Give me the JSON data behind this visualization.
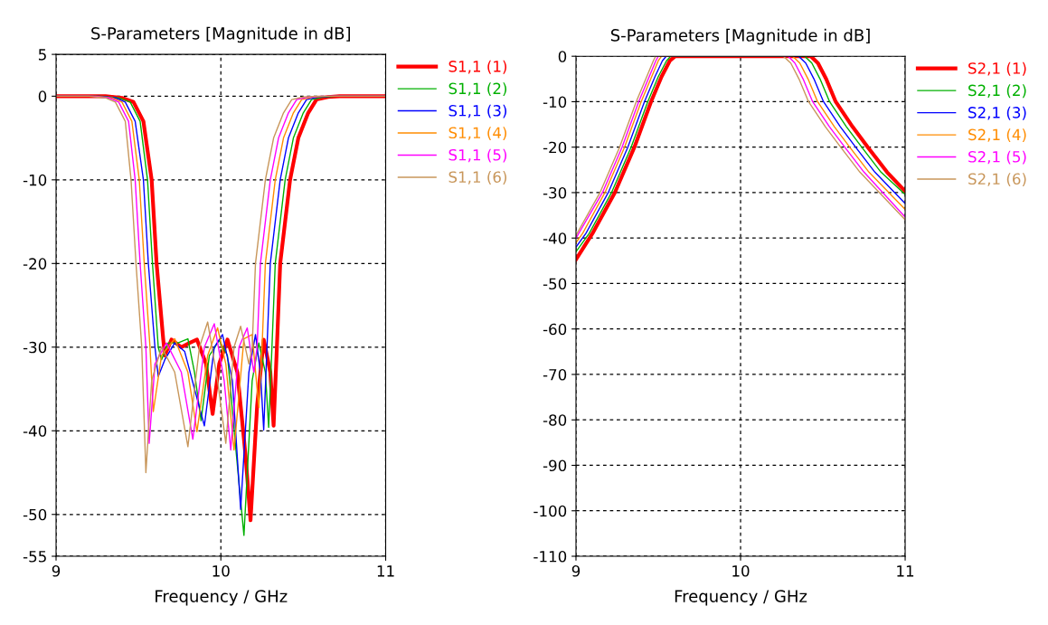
{
  "chart_data": [
    {
      "type": "line",
      "title": "S-Parameters [Magnitude in dB]",
      "xlabel": "Frequency / GHz",
      "xlim": [
        9,
        11
      ],
      "xticks": [
        9,
        10,
        11
      ],
      "ylim": [
        -55,
        5
      ],
      "yticks": [
        5,
        0,
        -10,
        -20,
        -30,
        -40,
        -50,
        -55
      ],
      "grid": true,
      "legend": "top right",
      "marker": "none",
      "line_style": "solid",
      "series": [
        {
          "name": "S1,1 (1)",
          "color": "#ff0000",
          "x": [
            9.0,
            9.3,
            9.4,
            9.47,
            9.53,
            9.58,
            9.61,
            9.65,
            9.66,
            9.7,
            9.76,
            9.81,
            9.855,
            9.91,
            9.95,
            9.99,
            10.04,
            10.1,
            10.15,
            10.18,
            10.22,
            10.26,
            10.3,
            10.32,
            10.34,
            10.36,
            10.42,
            10.47,
            10.53,
            10.58,
            10.65,
            10.72,
            11.0
          ],
          "values": [
            0,
            0,
            -0.2,
            -0.7,
            -3,
            -10,
            -20,
            -29,
            -31,
            -29.1,
            -30,
            -29.5,
            -29.1,
            -32,
            -38,
            -32,
            -29.1,
            -33,
            -43,
            -50.7,
            -37,
            -29.1,
            -33,
            -39.4,
            -30,
            -20,
            -10,
            -5,
            -2,
            -0.4,
            -0.1,
            0,
            0
          ]
        },
        {
          "name": "S1,1 (2)",
          "color": "#00b000",
          "x": [
            9.0,
            9.28,
            9.38,
            9.45,
            9.51,
            9.555,
            9.585,
            9.62,
            9.64,
            9.68,
            9.74,
            9.8,
            9.84,
            9.88,
            9.93,
            9.99,
            10.04,
            10.09,
            10.14,
            10.19,
            10.23,
            10.27,
            10.29,
            10.31,
            10.33,
            10.39,
            10.44,
            10.5,
            10.55,
            10.62,
            10.7,
            11.0
          ],
          "values": [
            0,
            0,
            -0.2,
            -0.7,
            -3,
            -10,
            -20,
            -30,
            -31.5,
            -29.5,
            -29.5,
            -29,
            -33,
            -38.8,
            -31,
            -29.2,
            -31,
            -42,
            -52.5,
            -34,
            -29.5,
            -33,
            -39.6,
            -30,
            -20,
            -10,
            -5,
            -2,
            -0.4,
            -0.1,
            0,
            0
          ]
        },
        {
          "name": "S1,1 (3)",
          "color": "#0000ff",
          "x": [
            9.0,
            9.26,
            9.36,
            9.42,
            9.48,
            9.53,
            9.56,
            9.6,
            9.62,
            9.66,
            9.72,
            9.78,
            9.84,
            9.9,
            9.96,
            10.01,
            10.07,
            10.12,
            10.17,
            10.21,
            10.24,
            10.26,
            10.28,
            10.3,
            10.36,
            10.41,
            10.47,
            10.52,
            10.59,
            10.67,
            11.0
          ],
          "values": [
            0,
            0,
            -0.2,
            -0.7,
            -3,
            -10,
            -20,
            -30,
            -33.5,
            -31.5,
            -29.5,
            -30.5,
            -35,
            -39.4,
            -30,
            -28.5,
            -34,
            -49.4,
            -33,
            -28.5,
            -33,
            -39.9,
            -30,
            -20,
            -10,
            -5,
            -2,
            -0.4,
            -0.1,
            0,
            0
          ]
        },
        {
          "name": "S1,1 (4)",
          "color": "#ff8c00",
          "x": [
            9.0,
            9.24,
            9.34,
            9.4,
            9.46,
            9.505,
            9.535,
            9.57,
            9.59,
            9.64,
            9.72,
            9.8,
            9.855,
            9.92,
            9.98,
            10.03,
            10.08,
            10.14,
            10.19,
            10.23,
            10.25,
            10.27,
            10.33,
            10.38,
            10.44,
            10.49,
            10.56,
            10.64,
            11.0
          ],
          "values": [
            0,
            0,
            -0.2,
            -0.7,
            -3,
            -10,
            -20,
            -30,
            -37.7,
            -31,
            -29,
            -33,
            -40.1,
            -31,
            -27.7,
            -32,
            -42.3,
            -29,
            -28.5,
            -37.2,
            -30,
            -20,
            -10,
            -5,
            -2,
            -0.4,
            -0.1,
            0,
            0
          ]
        },
        {
          "name": "S1,1 (5)",
          "color": "#ff00ff",
          "x": [
            9.0,
            9.22,
            9.32,
            9.38,
            9.44,
            9.48,
            9.51,
            9.545,
            9.565,
            9.6,
            9.67,
            9.76,
            9.83,
            9.9,
            9.96,
            10.02,
            10.06,
            10.11,
            10.16,
            10.2,
            10.22,
            10.24,
            10.3,
            10.35,
            10.41,
            10.46,
            10.53,
            10.61,
            11.0
          ],
          "values": [
            0,
            0,
            -0.2,
            -0.7,
            -3,
            -10,
            -20,
            -30,
            -41.5,
            -32,
            -29.5,
            -33,
            -41,
            -30,
            -27.2,
            -34,
            -42.3,
            -30,
            -27.7,
            -33,
            -30,
            -20,
            -10,
            -5,
            -2,
            -0.4,
            -0.1,
            0,
            0
          ]
        },
        {
          "name": "S1,1 (6)",
          "color": "#c8965a",
          "x": [
            9.0,
            9.2,
            9.3,
            9.36,
            9.42,
            9.455,
            9.485,
            9.52,
            9.545,
            9.58,
            9.64,
            9.72,
            9.8,
            9.87,
            9.92,
            9.98,
            10.03,
            10.08,
            10.12,
            10.17,
            10.19,
            10.21,
            10.27,
            10.32,
            10.38,
            10.43,
            10.5,
            10.58,
            11.0
          ],
          "values": [
            0,
            0,
            -0.2,
            -0.7,
            -3,
            -10,
            -20,
            -30,
            -45,
            -34,
            -30,
            -33,
            -41.9,
            -30,
            -27,
            -34,
            -41.5,
            -30,
            -27.5,
            -32,
            -30,
            -20,
            -10,
            -5,
            -2,
            -0.4,
            -0.1,
            0,
            0
          ]
        }
      ]
    },
    {
      "type": "line",
      "title": "S-Parameters [Magnitude in dB]",
      "xlabel": "Frequency / GHz",
      "xlim": [
        9,
        11
      ],
      "xticks": [
        9,
        10,
        11
      ],
      "ylim": [
        -110,
        0
      ],
      "yticks": [
        0,
        -10,
        -20,
        -30,
        -40,
        -50,
        -60,
        -70,
        -80,
        -90,
        -100,
        -110
      ],
      "grid": true,
      "legend": "top right",
      "marker": "none",
      "line_style": "solid",
      "series": [
        {
          "name": "S2,1 (1)",
          "color": "#ff0000",
          "x": [
            9.0,
            9.1,
            9.236,
            9.355,
            9.456,
            9.52,
            9.57,
            9.603,
            10.0,
            10.427,
            10.47,
            10.52,
            10.578,
            10.68,
            10.775,
            10.89,
            11.0
          ],
          "values": [
            -44.7,
            -39,
            -30,
            -20,
            -10,
            -4.5,
            -1,
            0,
            0,
            0,
            -1.5,
            -5,
            -10,
            -15.5,
            -20.1,
            -25.5,
            -29.7
          ]
        },
        {
          "name": "S2,1 (2)",
          "color": "#00b000",
          "x": [
            9.0,
            9.08,
            9.216,
            9.335,
            9.436,
            9.5,
            9.55,
            9.575,
            10.0,
            10.39,
            10.433,
            10.483,
            10.541,
            10.643,
            10.738,
            10.853,
            11.0
          ],
          "values": [
            -43,
            -39,
            -30,
            -20,
            -10,
            -4.5,
            -1,
            0,
            0,
            0,
            -1.5,
            -5,
            -10,
            -15.5,
            -20.1,
            -25.5,
            -30.4
          ]
        },
        {
          "name": "S2,1 (3)",
          "color": "#0000ff",
          "x": [
            9.0,
            9.06,
            9.196,
            9.315,
            9.416,
            9.48,
            9.525,
            9.548,
            10.0,
            10.353,
            10.396,
            10.446,
            10.504,
            10.606,
            10.701,
            10.816,
            11.0
          ],
          "values": [
            -42,
            -39,
            -30,
            -20,
            -10,
            -4.5,
            -1,
            0,
            0,
            0,
            -1.5,
            -5,
            -10,
            -15.5,
            -20.1,
            -25.5,
            -32.4
          ]
        },
        {
          "name": "S2,1 (4)",
          "color": "#ff8c00",
          "x": [
            9.0,
            9.04,
            9.176,
            9.295,
            9.396,
            9.46,
            9.5,
            9.52,
            10.0,
            10.317,
            10.36,
            10.41,
            10.468,
            10.57,
            10.665,
            10.78,
            11.0
          ],
          "values": [
            -41,
            -39,
            -30,
            -20,
            -10,
            -4.5,
            -1,
            0,
            0,
            0,
            -1.5,
            -5,
            -10,
            -15.5,
            -20.1,
            -25.5,
            -33.7
          ]
        },
        {
          "name": "S2,1 (5)",
          "color": "#ff00ff",
          "x": [
            9.0,
            9.161,
            9.28,
            9.381,
            9.445,
            9.485,
            9.5,
            10.0,
            10.29,
            10.33,
            10.38,
            10.438,
            10.54,
            10.635,
            10.75,
            11.0
          ],
          "values": [
            -40,
            -30,
            -20,
            -10,
            -4.5,
            -1,
            0,
            0,
            0,
            -1.5,
            -5,
            -10,
            -15.5,
            -20.1,
            -25.5,
            -35.4
          ]
        },
        {
          "name": "S2,1 (6)",
          "color": "#c8965a",
          "x": [
            9.0,
            9.146,
            9.265,
            9.366,
            9.43,
            9.47,
            9.484,
            10.0,
            10.26,
            10.305,
            10.355,
            10.413,
            10.515,
            10.61,
            10.725,
            11.0
          ],
          "values": [
            -39.4,
            -30,
            -20,
            -10,
            -4.5,
            -1,
            0,
            0,
            0,
            -1.5,
            -5,
            -10,
            -15.5,
            -20.1,
            -25.5,
            -36
          ]
        }
      ]
    }
  ]
}
